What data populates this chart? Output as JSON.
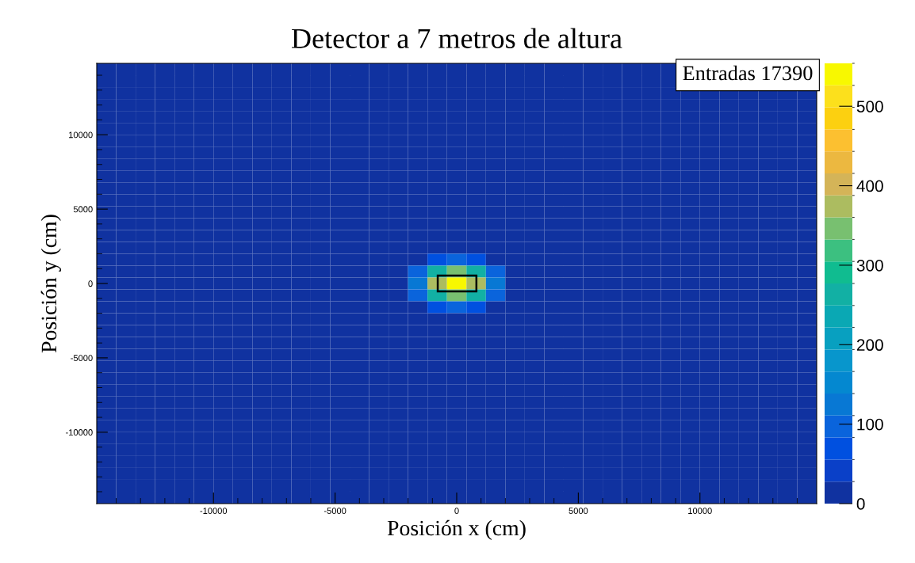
{
  "chart_data": {
    "type": "heatmap",
    "title": "Detector a 7 metros de altura",
    "xlabel": "Posición x (cm)",
    "ylabel": "Posición y (cm)",
    "annotations": [
      "Entradas 17390"
    ],
    "x": [
      -14400,
      -13600,
      -12800,
      -12000,
      -11200,
      -10400,
      -9600,
      -8800,
      -8000,
      -7200,
      -6400,
      -5600,
      -4800,
      -4000,
      -3200,
      -2400,
      -1600,
      -800,
      0,
      800,
      1600,
      2400,
      3200,
      4000,
      4800,
      5600,
      6400,
      7200,
      8000,
      8800,
      9600,
      10400,
      11200,
      12000,
      12800,
      13600,
      14400
    ],
    "y": [
      14400,
      13600,
      12800,
      12000,
      11200,
      10400,
      9600,
      8800,
      8000,
      7200,
      6400,
      5600,
      4800,
      4000,
      3200,
      2400,
      1600,
      800,
      0,
      -800,
      -1600,
      -2400,
      -3200,
      -4000,
      -4800,
      -5600,
      -6400,
      -7200,
      -8000,
      -8800,
      -9600,
      -10400,
      -11200,
      -12000,
      -12800,
      -13600,
      -14400
    ],
    "cells": [
      [
        0,
        0,
        0,
        0,
        0,
        0,
        0,
        0,
        0,
        0,
        0,
        0,
        0,
        0,
        0,
        0,
        0,
        0,
        0,
        0,
        0,
        0,
        0,
        0,
        0,
        0,
        0,
        0,
        0,
        0,
        null,
        null,
        null,
        null,
        null,
        null,
        null
      ],
      [
        0,
        0,
        0,
        0,
        0,
        0,
        0,
        0,
        0,
        0,
        0,
        0,
        0,
        0,
        0,
        0,
        0,
        0,
        0,
        0,
        0,
        0,
        0,
        0,
        0,
        0,
        0,
        0,
        0,
        0,
        null,
        null,
        null,
        null,
        null,
        null,
        null
      ],
      [
        0,
        0,
        0,
        0,
        0,
        0,
        0,
        0,
        0,
        0,
        0,
        0,
        0,
        0,
        0,
        0,
        0,
        0,
        0,
        0,
        0,
        0,
        0,
        0,
        0,
        0,
        0,
        0,
        0,
        0,
        0,
        0,
        0,
        0,
        0,
        0,
        0
      ],
      [
        0,
        0,
        0,
        0,
        0,
        0,
        0,
        0,
        0,
        0,
        0,
        0,
        0,
        0,
        0,
        0,
        0,
        0,
        0,
        0,
        0,
        0,
        0,
        0,
        0,
        0,
        0,
        0,
        0,
        0,
        0,
        0,
        0,
        0,
        0,
        0,
        0
      ],
      [
        0,
        0,
        0,
        0,
        0,
        0,
        0,
        0,
        0,
        0,
        0,
        0,
        0,
        0,
        0,
        0,
        0,
        0,
        0,
        0,
        0,
        0,
        0,
        0,
        0,
        0,
        0,
        0,
        0,
        0,
        0,
        0,
        0,
        0,
        0,
        0,
        0
      ],
      [
        0,
        0,
        0,
        0,
        0,
        0,
        0,
        0,
        0,
        0,
        0,
        0,
        0,
        0,
        0,
        0,
        0,
        0,
        0,
        0,
        0,
        0,
        0,
        0,
        0,
        0,
        0,
        0,
        0,
        0,
        0,
        0,
        0,
        0,
        0,
        0,
        0
      ],
      [
        0,
        0,
        0,
        0,
        0,
        0,
        0,
        0,
        0,
        0,
        0,
        0,
        0,
        0,
        0,
        0,
        0,
        0,
        0,
        0,
        0,
        0,
        0,
        0,
        0,
        0,
        0,
        0,
        0,
        0,
        0,
        0,
        0,
        0,
        0,
        0,
        0
      ],
      [
        0,
        0,
        0,
        0,
        0,
        0,
        0,
        0,
        0,
        0,
        0,
        0,
        0,
        0,
        0,
        0,
        0,
        0,
        0,
        0,
        0,
        0,
        0,
        0,
        0,
        0,
        0,
        0,
        0,
        0,
        0,
        0,
        0,
        0,
        0,
        0,
        0
      ],
      [
        0,
        0,
        0,
        0,
        0,
        0,
        0,
        0,
        0,
        0,
        0,
        0,
        0,
        0,
        0,
        0,
        0,
        0,
        0,
        0,
        0,
        0,
        0,
        0,
        0,
        0,
        0,
        0,
        0,
        0,
        0,
        0,
        0,
        0,
        0,
        0,
        0
      ],
      [
        0,
        0,
        0,
        0,
        0,
        0,
        0,
        0,
        0,
        0,
        0,
        0,
        0,
        0,
        0,
        0,
        0,
        0,
        0,
        0,
        0,
        0,
        0,
        0,
        0,
        0,
        0,
        0,
        0,
        0,
        0,
        0,
        0,
        0,
        0,
        0,
        0
      ],
      [
        0,
        0,
        0,
        0,
        0,
        0,
        0,
        0,
        0,
        0,
        0,
        0,
        0,
        0,
        0,
        0,
        0,
        0,
        0,
        0,
        0,
        0,
        0,
        0,
        0,
        0,
        0,
        0,
        0,
        0,
        0,
        0,
        0,
        0,
        0,
        0,
        0
      ],
      [
        0,
        0,
        0,
        0,
        0,
        0,
        0,
        0,
        0,
        0,
        0,
        0,
        0,
        0,
        0,
        0,
        0,
        0,
        0,
        0,
        0,
        0,
        0,
        0,
        0,
        0,
        0,
        0,
        0,
        0,
        0,
        0,
        0,
        0,
        0,
        0,
        0
      ],
      [
        0,
        0,
        0,
        0,
        0,
        0,
        0,
        0,
        0,
        0,
        0,
        0,
        0,
        0,
        0,
        0,
        0,
        0,
        0,
        0,
        0,
        0,
        0,
        0,
        0,
        0,
        0,
        0,
        0,
        0,
        0,
        0,
        0,
        0,
        0,
        0,
        0
      ],
      [
        0,
        0,
        0,
        0,
        0,
        0,
        0,
        0,
        0,
        0,
        0,
        0,
        0,
        0,
        0,
        0,
        0,
        0,
        0,
        0,
        0,
        0,
        0,
        0,
        0,
        0,
        0,
        0,
        0,
        0,
        0,
        0,
        0,
        0,
        0,
        0,
        0
      ],
      [
        0,
        0,
        0,
        0,
        0,
        0,
        0,
        0,
        0,
        0,
        0,
        0,
        0,
        0,
        0,
        0,
        0,
        0,
        0,
        0,
        0,
        0,
        0,
        0,
        0,
        0,
        0,
        0,
        0,
        0,
        0,
        0,
        0,
        0,
        0,
        0,
        0
      ],
      [
        0,
        0,
        0,
        0,
        0,
        0,
        0,
        0,
        0,
        0,
        0,
        0,
        0,
        0,
        0,
        0,
        3,
        8,
        12,
        8,
        3,
        0,
        0,
        0,
        0,
        0,
        0,
        0,
        0,
        0,
        0,
        0,
        0,
        0,
        0,
        0,
        0
      ],
      [
        0,
        0,
        0,
        0,
        0,
        0,
        0,
        0,
        0,
        0,
        0,
        0,
        0,
        0,
        0,
        4,
        24,
        70,
        101,
        70,
        24,
        4,
        0,
        0,
        0,
        0,
        0,
        0,
        0,
        0,
        0,
        0,
        0,
        0,
        0,
        0,
        0
      ],
      [
        0,
        0,
        0,
        0,
        0,
        0,
        0,
        0,
        0,
        0,
        0,
        0,
        0,
        0,
        0,
        14,
        85,
        251,
        360,
        251,
        85,
        14,
        0,
        0,
        0,
        0,
        0,
        0,
        0,
        0,
        0,
        0,
        0,
        0,
        0,
        0,
        0
      ],
      [
        0,
        0,
        0,
        0,
        0,
        0,
        0,
        0,
        0,
        0,
        0,
        0,
        0,
        0,
        0,
        21,
        129,
        383,
        550,
        383,
        129,
        21,
        0,
        0,
        0,
        0,
        0,
        0,
        0,
        0,
        0,
        0,
        0,
        0,
        0,
        0,
        0
      ],
      [
        0,
        0,
        0,
        0,
        0,
        0,
        0,
        0,
        0,
        0,
        0,
        0,
        0,
        0,
        0,
        14,
        85,
        251,
        360,
        251,
        85,
        14,
        0,
        0,
        0,
        0,
        0,
        0,
        0,
        0,
        0,
        0,
        0,
        0,
        0,
        0,
        0
      ],
      [
        0,
        0,
        0,
        0,
        0,
        0,
        0,
        0,
        0,
        0,
        0,
        0,
        0,
        0,
        0,
        4,
        24,
        70,
        101,
        70,
        24,
        4,
        0,
        0,
        0,
        0,
        0,
        0,
        0,
        0,
        0,
        0,
        0,
        0,
        0,
        0,
        0
      ],
      [
        0,
        0,
        0,
        0,
        0,
        0,
        0,
        0,
        0,
        0,
        0,
        0,
        0,
        0,
        0,
        0,
        3,
        8,
        12,
        8,
        3,
        0,
        0,
        0,
        0,
        0,
        0,
        0,
        0,
        0,
        0,
        0,
        0,
        0,
        0,
        0,
        0
      ],
      [
        0,
        0,
        0,
        0,
        0,
        0,
        0,
        0,
        0,
        0,
        0,
        0,
        0,
        0,
        0,
        0,
        0,
        0,
        0,
        0,
        0,
        0,
        0,
        0,
        0,
        0,
        0,
        0,
        0,
        0,
        0,
        0,
        0,
        0,
        0,
        0,
        0
      ],
      [
        0,
        0,
        0,
        0,
        0,
        0,
        0,
        0,
        0,
        0,
        0,
        0,
        0,
        0,
        0,
        0,
        0,
        0,
        0,
        0,
        0,
        0,
        0,
        0,
        0,
        0,
        0,
        0,
        0,
        0,
        0,
        0,
        0,
        0,
        0,
        0,
        0
      ],
      [
        0,
        0,
        0,
        0,
        0,
        0,
        0,
        0,
        0,
        0,
        0,
        0,
        0,
        0,
        0,
        0,
        0,
        0,
        0,
        0,
        0,
        0,
        0,
        0,
        0,
        0,
        0,
        0,
        0,
        0,
        0,
        0,
        0,
        0,
        0,
        0,
        0
      ],
      [
        0,
        0,
        0,
        0,
        0,
        0,
        0,
        0,
        0,
        0,
        0,
        0,
        0,
        0,
        0,
        0,
        0,
        0,
        0,
        0,
        0,
        0,
        0,
        0,
        0,
        0,
        0,
        0,
        0,
        0,
        0,
        0,
        0,
        0,
        0,
        0,
        0
      ],
      [
        0,
        0,
        0,
        0,
        0,
        0,
        0,
        0,
        0,
        0,
        0,
        0,
        0,
        0,
        0,
        0,
        0,
        0,
        0,
        0,
        0,
        0,
        0,
        0,
        0,
        0,
        0,
        0,
        0,
        0,
        0,
        0,
        0,
        0,
        0,
        0,
        0
      ],
      [
        0,
        0,
        0,
        0,
        0,
        0,
        0,
        0,
        0,
        0,
        0,
        0,
        0,
        0,
        0,
        0,
        0,
        0,
        0,
        0,
        0,
        0,
        0,
        0,
        0,
        0,
        0,
        0,
        0,
        0,
        0,
        0,
        0,
        0,
        0,
        0,
        0
      ],
      [
        0,
        0,
        0,
        0,
        0,
        0,
        0,
        0,
        0,
        0,
        0,
        0,
        0,
        0,
        0,
        0,
        0,
        0,
        0,
        0,
        0,
        0,
        0,
        0,
        0,
        0,
        0,
        0,
        0,
        0,
        0,
        0,
        0,
        0,
        0,
        0,
        0
      ],
      [
        0,
        0,
        0,
        0,
        0,
        0,
        0,
        0,
        0,
        0,
        0,
        0,
        0,
        0,
        0,
        0,
        0,
        0,
        0,
        0,
        0,
        0,
        0,
        0,
        0,
        0,
        0,
        0,
        0,
        0,
        0,
        0,
        0,
        0,
        0,
        0,
        0
      ],
      [
        0,
        0,
        0,
        0,
        0,
        0,
        0,
        0,
        0,
        0,
        0,
        0,
        0,
        0,
        0,
        0,
        0,
        0,
        0,
        0,
        0,
        0,
        0,
        0,
        0,
        0,
        0,
        0,
        0,
        0,
        0,
        0,
        0,
        0,
        0,
        0,
        0
      ],
      [
        0,
        0,
        0,
        0,
        0,
        0,
        0,
        0,
        0,
        0,
        0,
        0,
        0,
        0,
        0,
        0,
        0,
        0,
        0,
        0,
        0,
        0,
        0,
        0,
        0,
        0,
        0,
        0,
        0,
        0,
        0,
        0,
        0,
        0,
        0,
        0,
        0
      ],
      [
        0,
        0,
        0,
        0,
        0,
        0,
        0,
        0,
        0,
        0,
        0,
        0,
        0,
        0,
        0,
        0,
        0,
        0,
        0,
        0,
        0,
        0,
        0,
        0,
        0,
        0,
        0,
        0,
        0,
        0,
        0,
        0,
        0,
        0,
        0,
        0,
        0
      ],
      [
        0,
        0,
        0,
        0,
        0,
        0,
        0,
        0,
        0,
        0,
        0,
        0,
        0,
        0,
        0,
        0,
        0,
        0,
        0,
        0,
        0,
        0,
        0,
        0,
        0,
        0,
        0,
        0,
        0,
        0,
        0,
        0,
        0,
        0,
        0,
        0,
        0
      ],
      [
        0,
        0,
        0,
        0,
        0,
        0,
        0,
        0,
        0,
        0,
        0,
        0,
        0,
        0,
        0,
        0,
        0,
        0,
        0,
        0,
        0,
        0,
        0,
        0,
        0,
        0,
        0,
        0,
        0,
        0,
        0,
        0,
        0,
        0,
        0,
        0,
        0
      ],
      [
        0,
        0,
        0,
        0,
        0,
        0,
        0,
        0,
        0,
        0,
        0,
        0,
        0,
        0,
        0,
        0,
        0,
        0,
        0,
        0,
        0,
        0,
        0,
        0,
        0,
        0,
        0,
        0,
        0,
        0,
        0,
        0,
        0,
        0,
        0,
        0,
        0
      ],
      [
        0,
        0,
        0,
        0,
        0,
        0,
        0,
        0,
        0,
        0,
        0,
        0,
        0,
        0,
        0,
        0,
        0,
        0,
        0,
        0,
        0,
        0,
        0,
        0,
        0,
        0,
        0,
        0,
        0,
        0,
        0,
        0,
        0,
        0,
        0,
        0,
        0
      ]
    ],
    "xlim": [
      -14800,
      14800
    ],
    "ylim": [
      -14800,
      14800
    ],
    "xticks": [
      -10000,
      -5000,
      0,
      5000,
      10000
    ],
    "yticks": [
      -10000,
      -5000,
      0,
      5000,
      10000
    ],
    "clim": [
      0,
      554
    ],
    "cticks": [
      0,
      100,
      200,
      300,
      400,
      500
    ],
    "grid": false
  }
}
